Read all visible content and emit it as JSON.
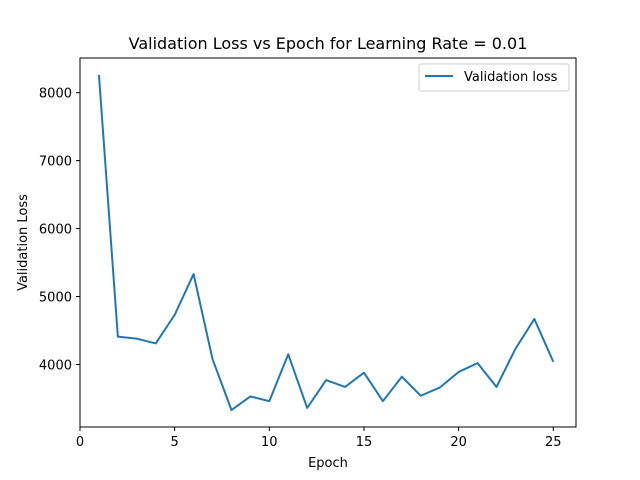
{
  "chart_data": {
    "type": "line",
    "title": "Validation Loss vs Epoch for Learning Rate = 0.01",
    "xlabel": "Epoch",
    "ylabel": "Validation Loss",
    "xlim": [
      0,
      26.2
    ],
    "ylim": [
      3080,
      8510
    ],
    "xticks": [
      0,
      5,
      10,
      15,
      20,
      25
    ],
    "yticks": [
      4000,
      5000,
      6000,
      7000,
      8000
    ],
    "grid": false,
    "legend_position": "top-right",
    "series": [
      {
        "name": "Validation loss",
        "color": "#1f77b4",
        "x": [
          1,
          2,
          3,
          4,
          5,
          6,
          7,
          8,
          9,
          10,
          11,
          12,
          13,
          14,
          15,
          16,
          17,
          18,
          19,
          20,
          21,
          22,
          23,
          24,
          25
        ],
        "y": [
          8260,
          4410,
          4380,
          4310,
          4730,
          5330,
          4080,
          3330,
          3530,
          3460,
          4150,
          3360,
          3770,
          3670,
          3880,
          3460,
          3820,
          3540,
          3660,
          3890,
          4020,
          3670,
          4230,
          4670,
          4040
        ]
      }
    ]
  }
}
